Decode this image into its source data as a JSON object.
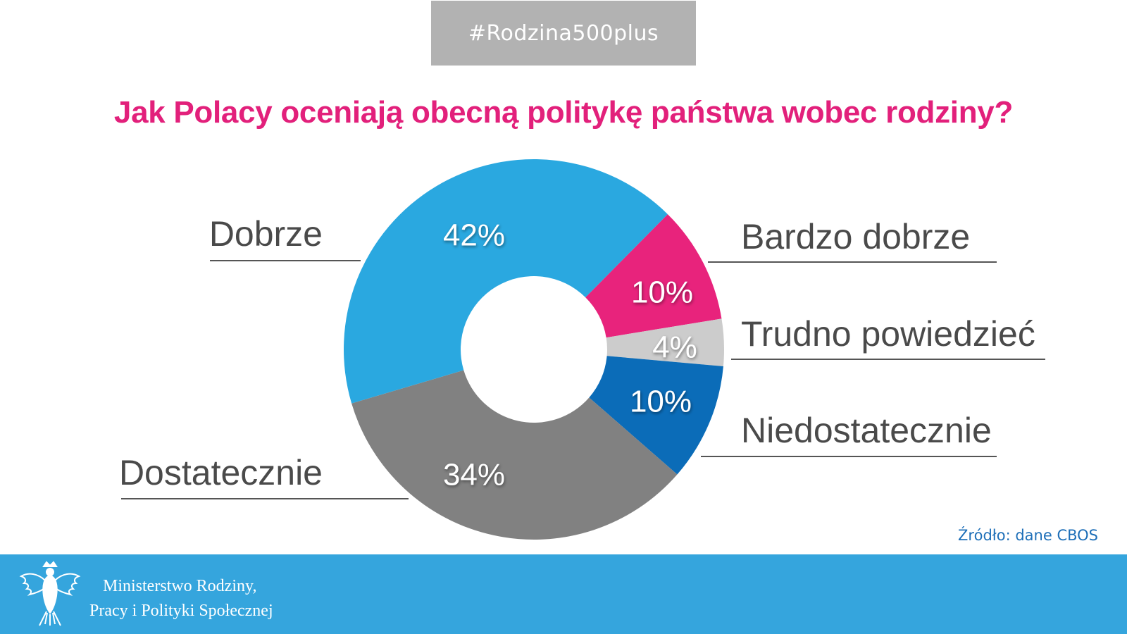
{
  "header": {
    "hashtag": "#Rodzina500plus"
  },
  "title": "Jak Polacy oceniają obecną politykę państwa wobec rodziny?",
  "source": "Źródło: dane CBOS",
  "footer": {
    "ministry_line1": "Ministerstwo Rodziny,",
    "ministry_line2": "Pracy i Polityki Społecznej",
    "emblem_icon": "polish-eagle-emblem"
  },
  "chart_data": {
    "type": "pie",
    "variant": "donut",
    "start": "top-right, clockwise",
    "slices": [
      {
        "label": "Bardzo dobrze",
        "value": 10,
        "display": "10%",
        "color": "#e8237c"
      },
      {
        "label": "Trudno powiedzieć",
        "value": 4,
        "display": "4%",
        "color": "#cccccc"
      },
      {
        "label": "Niedostatecznie",
        "value": 10,
        "display": "10%",
        "color": "#0b6cb8"
      },
      {
        "label": "Dostatecznie",
        "value": 34,
        "display": "34%",
        "color": "#818181"
      },
      {
        "label": "Dobrze",
        "value": 42,
        "display": "42%",
        "color": "#2aa8e0"
      }
    ]
  }
}
